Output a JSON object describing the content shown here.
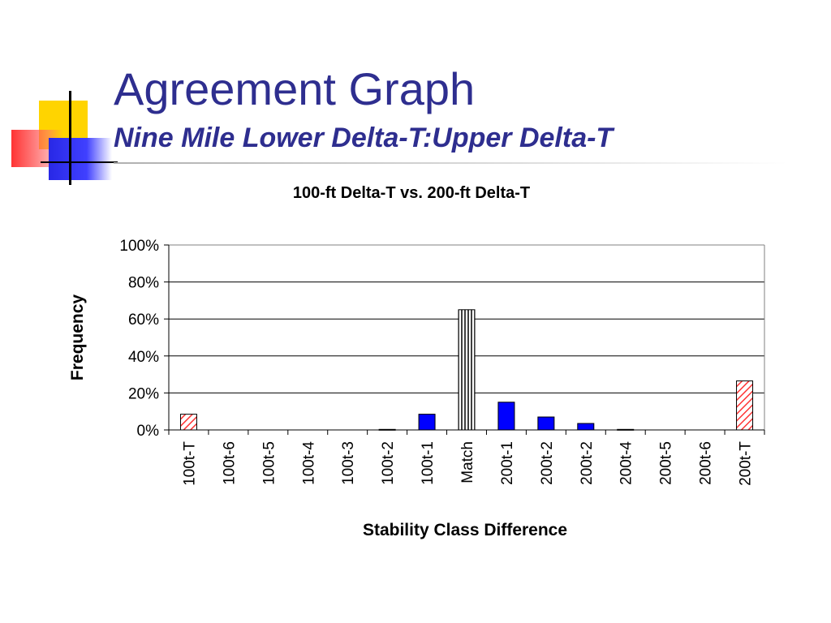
{
  "slide": {
    "title": "Agreement Graph",
    "subtitle": "Nine Mile Lower Delta-T:Upper Delta-T"
  },
  "colors": {
    "title": "#2e2e8f",
    "blue_bar": "#0000ff",
    "hatched_red": "#ff3333",
    "grid": "#000000"
  },
  "chart_data": {
    "type": "bar",
    "title": "100-ft Delta-T vs. 200-ft Delta-T",
    "xlabel": "Stability Class Difference",
    "ylabel": "Frequency",
    "ylim": [
      0,
      100
    ],
    "yticks": [
      "0%",
      "20%",
      "40%",
      "60%",
      "80%",
      "100%"
    ],
    "grid": "horizontal",
    "categories": [
      "100t-T",
      "100t-6",
      "100t-5",
      "100t-4",
      "100t-3",
      "100t-2",
      "100t-1",
      "Match",
      "200t-1",
      "200t-2",
      "200t-2",
      "200t-4",
      "200t-5",
      "200t-6",
      "200t-T"
    ],
    "values": [
      8.5,
      0,
      0,
      0,
      0,
      0.3,
      8.5,
      65,
      15,
      7,
      3.5,
      0.3,
      0,
      0,
      26.5
    ],
    "bar_styles": [
      "hatch-red",
      "solid-blue",
      "solid-blue",
      "solid-blue",
      "solid-blue",
      "solid-blue",
      "solid-blue",
      "vertical-stripes",
      "solid-blue",
      "solid-blue",
      "solid-blue",
      "solid-blue",
      "solid-blue",
      "solid-blue",
      "hatch-red"
    ]
  }
}
